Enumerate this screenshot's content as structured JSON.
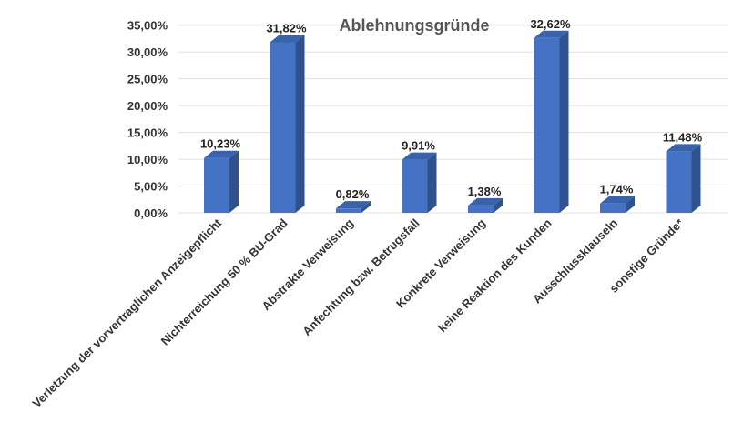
{
  "chart_data": {
    "type": "bar",
    "title": "Ablehnungsgründe",
    "categories": [
      "Verletzung der vorvertraglichen Anzeigepflicht",
      "Nichterreichung 50 % BU-Grad",
      "Abstrakte Verweisung",
      "Anfechtung bzw. Betrugsfall",
      "Konkrete Verweisung",
      "keine Reaktion des Kunden",
      "Ausschlussklauseln",
      "sonstige Gründe*"
    ],
    "values": [
      10.23,
      31.82,
      0.82,
      9.91,
      1.38,
      32.62,
      1.74,
      11.48
    ],
    "value_labels": [
      "10,23%",
      "31,82%",
      "0,82%",
      "9,91%",
      "1,38%",
      "32,62%",
      "1,74%",
      "11,48%"
    ],
    "yticks": [
      0,
      5,
      10,
      15,
      20,
      25,
      30,
      35
    ],
    "ytick_labels": [
      "0,00%",
      "5,00%",
      "10,00%",
      "15,00%",
      "20,00%",
      "25,00%",
      "30,00%",
      "35,00%"
    ],
    "ylim": [
      0,
      37.5
    ],
    "grid": true,
    "legend": "none",
    "colors": {
      "bar_front": "#4472c4",
      "bar_side": "#2f528f",
      "bar_top": "#3a62aa"
    }
  }
}
